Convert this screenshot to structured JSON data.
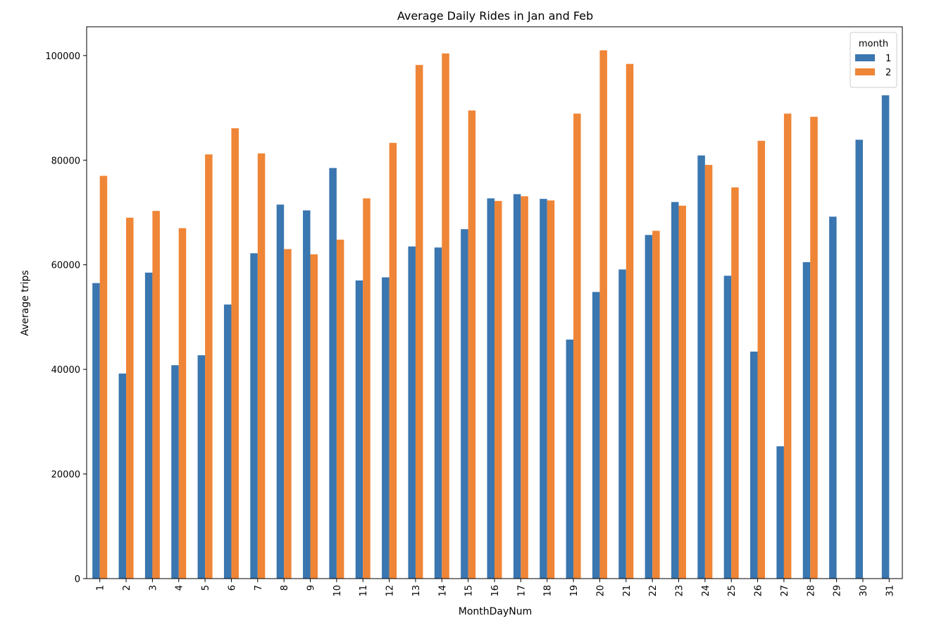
{
  "chart_data": {
    "type": "bar",
    "title": "Average Daily Rides in Jan and Feb",
    "xlabel": "MonthDayNum",
    "ylabel": "Average trips",
    "ylim": [
      0,
      105500
    ],
    "yticks": [
      0,
      20000,
      40000,
      60000,
      80000,
      100000
    ],
    "grid": false,
    "legend": {
      "title": "month",
      "placement": "top-right"
    },
    "categories": [
      "1",
      "2",
      "3",
      "4",
      "5",
      "6",
      "7",
      "8",
      "9",
      "10",
      "11",
      "12",
      "13",
      "14",
      "15",
      "16",
      "17",
      "18",
      "19",
      "20",
      "21",
      "22",
      "23",
      "24",
      "25",
      "26",
      "27",
      "28",
      "29",
      "30",
      "31"
    ],
    "series": [
      {
        "name": "1",
        "color": "#3a76af",
        "values": [
          56500,
          39200,
          58500,
          40800,
          42700,
          52400,
          62200,
          71500,
          70400,
          78500,
          57000,
          57600,
          63500,
          63300,
          66800,
          72700,
          73500,
          72600,
          45700,
          54800,
          59100,
          65700,
          72000,
          80900,
          57900,
          43400,
          25300,
          60500,
          69200,
          83900,
          92400
        ]
      },
      {
        "name": "2",
        "color": "#ef8536",
        "values": [
          77000,
          69000,
          70300,
          67000,
          81100,
          86100,
          81300,
          63000,
          62000,
          64800,
          72700,
          83300,
          98200,
          100400,
          89500,
          72200,
          73100,
          72300,
          88900,
          101000,
          98400,
          66500,
          71300,
          79100,
          74800,
          83700,
          88900,
          88300,
          null,
          null,
          null
        ]
      }
    ]
  }
}
